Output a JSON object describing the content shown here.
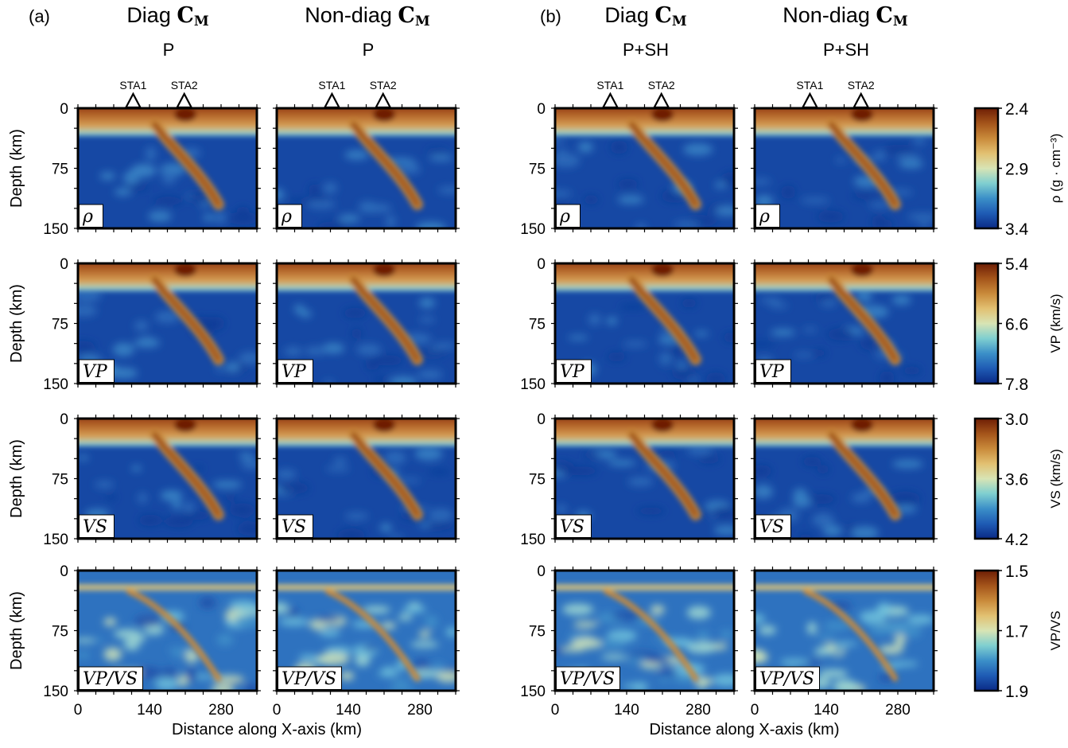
{
  "figure": {
    "panel_labels": [
      "(a)",
      "(b)"
    ],
    "columns": [
      {
        "title": "Diag",
        "matrix": "C",
        "matrix_sub": "M",
        "subtitle": "P"
      },
      {
        "title": "Non-diag",
        "matrix": "C",
        "matrix_sub": "M",
        "subtitle": "P"
      },
      {
        "title": "Diag",
        "matrix": "C",
        "matrix_sub": "M",
        "subtitle": "P+SH"
      },
      {
        "title": "Non-diag",
        "matrix": "C",
        "matrix_sub": "M",
        "subtitle": "P+SH"
      }
    ],
    "stations": [
      {
        "name": "STA1",
        "x_km": 108
      },
      {
        "name": "STA2",
        "x_km": 208
      }
    ],
    "rows": [
      {
        "param_label": "ρ",
        "colorbar": {
          "label": "ρ (g · cm⁻³)",
          "ticks": [
            "2.4",
            "2.9",
            "3.4"
          ]
        }
      },
      {
        "param_label": "VP",
        "colorbar": {
          "label": "VP (km/s)",
          "ticks": [
            "5.4",
            "6.6",
            "7.8"
          ]
        }
      },
      {
        "param_label": "VS",
        "colorbar": {
          "label": "VS (km/s)",
          "ticks": [
            "3.0",
            "3.6",
            "4.2"
          ]
        }
      },
      {
        "param_label": "VP/VS",
        "colorbar": {
          "label": "VP/VS",
          "ticks": [
            "1.5",
            "1.7",
            "1.9"
          ]
        }
      }
    ],
    "y_axis": {
      "label": "Depth (km)",
      "ticks": [
        "0",
        "75",
        "150"
      ],
      "range": [
        0,
        150
      ]
    },
    "x_axis": {
      "label": "Distance along X-axis (km)",
      "ticks": [
        "0",
        "140",
        "280"
      ],
      "range": [
        0,
        350
      ]
    },
    "colormap": [
      "#0a2a86",
      "#1f5bb4",
      "#3b8fc8",
      "#7fcfd0",
      "#d8e4b4",
      "#e2c071",
      "#c98a3a",
      "#a4541a",
      "#6e1e05"
    ]
  }
}
